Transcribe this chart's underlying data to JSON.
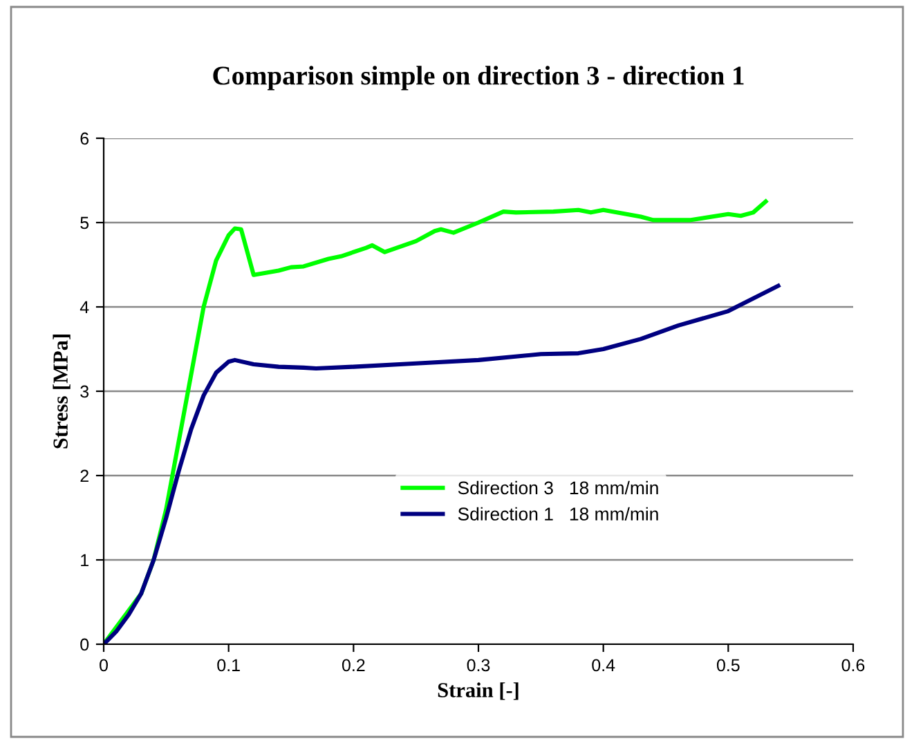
{
  "chart_data": {
    "type": "line",
    "title": "Comparison simple on direction 3 - direction 1",
    "xlabel": "Strain [-]",
    "ylabel": "Stress [MPa]",
    "xlim": [
      0,
      0.6
    ],
    "xticks": [
      0,
      0.1,
      0.2,
      0.3,
      0.4,
      0.5,
      0.6
    ],
    "ylim": [
      0,
      6
    ],
    "yticks": [
      0,
      1,
      2,
      3,
      4,
      5,
      6
    ],
    "grid": "y",
    "legend": "center",
    "marker": "none",
    "line_style": "solid",
    "series": [
      {
        "name": "Sdirection 3   18 mm/min",
        "color": "#00ff00",
        "x": [
          0,
          0.01,
          0.02,
          0.03,
          0.04,
          0.05,
          0.06,
          0.07,
          0.08,
          0.09,
          0.1,
          0.105,
          0.11,
          0.12,
          0.14,
          0.15,
          0.16,
          0.18,
          0.19,
          0.21,
          0.215,
          0.225,
          0.25,
          0.265,
          0.27,
          0.28,
          0.3,
          0.32,
          0.33,
          0.36,
          0.38,
          0.39,
          0.4,
          0.43,
          0.44,
          0.47,
          0.5,
          0.51,
          0.52,
          0.53
        ],
        "values": [
          0,
          0.2,
          0.4,
          0.6,
          1.0,
          1.6,
          2.4,
          3.2,
          4.0,
          4.55,
          4.85,
          4.93,
          4.92,
          4.38,
          4.43,
          4.47,
          4.48,
          4.57,
          4.6,
          4.7,
          4.73,
          4.65,
          4.78,
          4.9,
          4.92,
          4.88,
          5.0,
          5.13,
          5.12,
          5.13,
          5.15,
          5.12,
          5.15,
          5.07,
          5.03,
          5.03,
          5.1,
          5.08,
          5.12,
          5.25
        ]
      },
      {
        "name": "Sdirection 1   18 mm/min",
        "color": "#000080",
        "x": [
          0,
          0.01,
          0.02,
          0.03,
          0.04,
          0.05,
          0.06,
          0.07,
          0.08,
          0.09,
          0.1,
          0.105,
          0.12,
          0.14,
          0.16,
          0.17,
          0.2,
          0.25,
          0.3,
          0.35,
          0.38,
          0.4,
          0.43,
          0.46,
          0.5,
          0.54
        ],
        "values": [
          0,
          0.15,
          0.35,
          0.6,
          1.0,
          1.5,
          2.05,
          2.55,
          2.95,
          3.22,
          3.35,
          3.37,
          3.32,
          3.29,
          3.28,
          3.27,
          3.29,
          3.33,
          3.37,
          3.44,
          3.45,
          3.5,
          3.62,
          3.78,
          3.95,
          4.25
        ]
      }
    ]
  }
}
